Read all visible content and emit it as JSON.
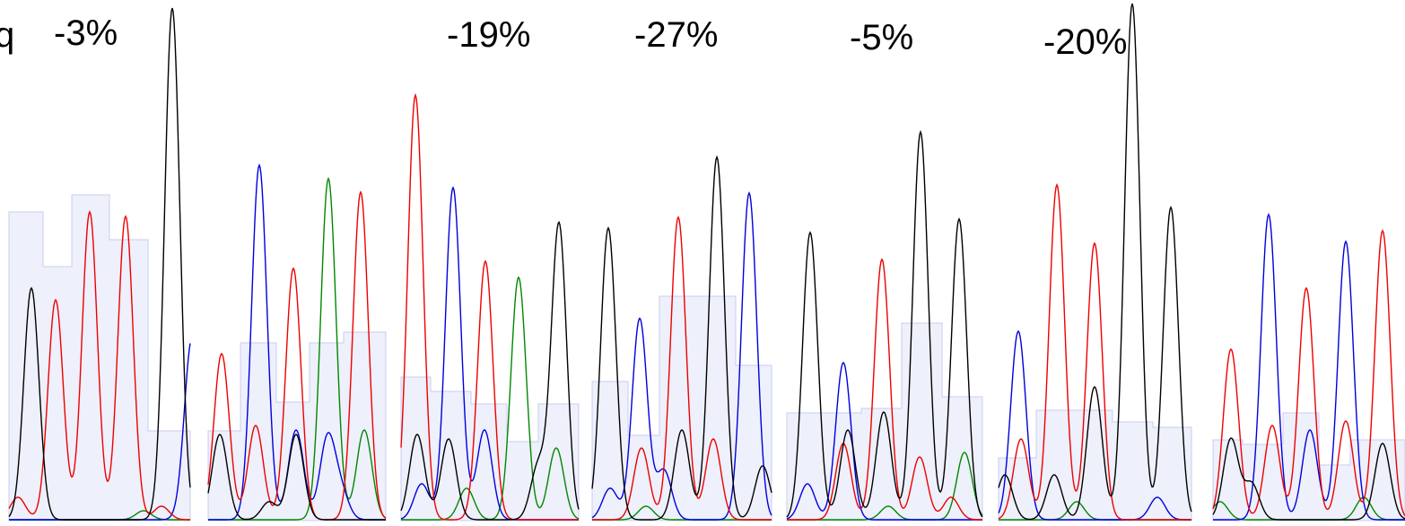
{
  "labels": [
    "q",
    "-3%",
    "-19%",
    "-27%",
    "-5%",
    "-20%"
  ]
}
